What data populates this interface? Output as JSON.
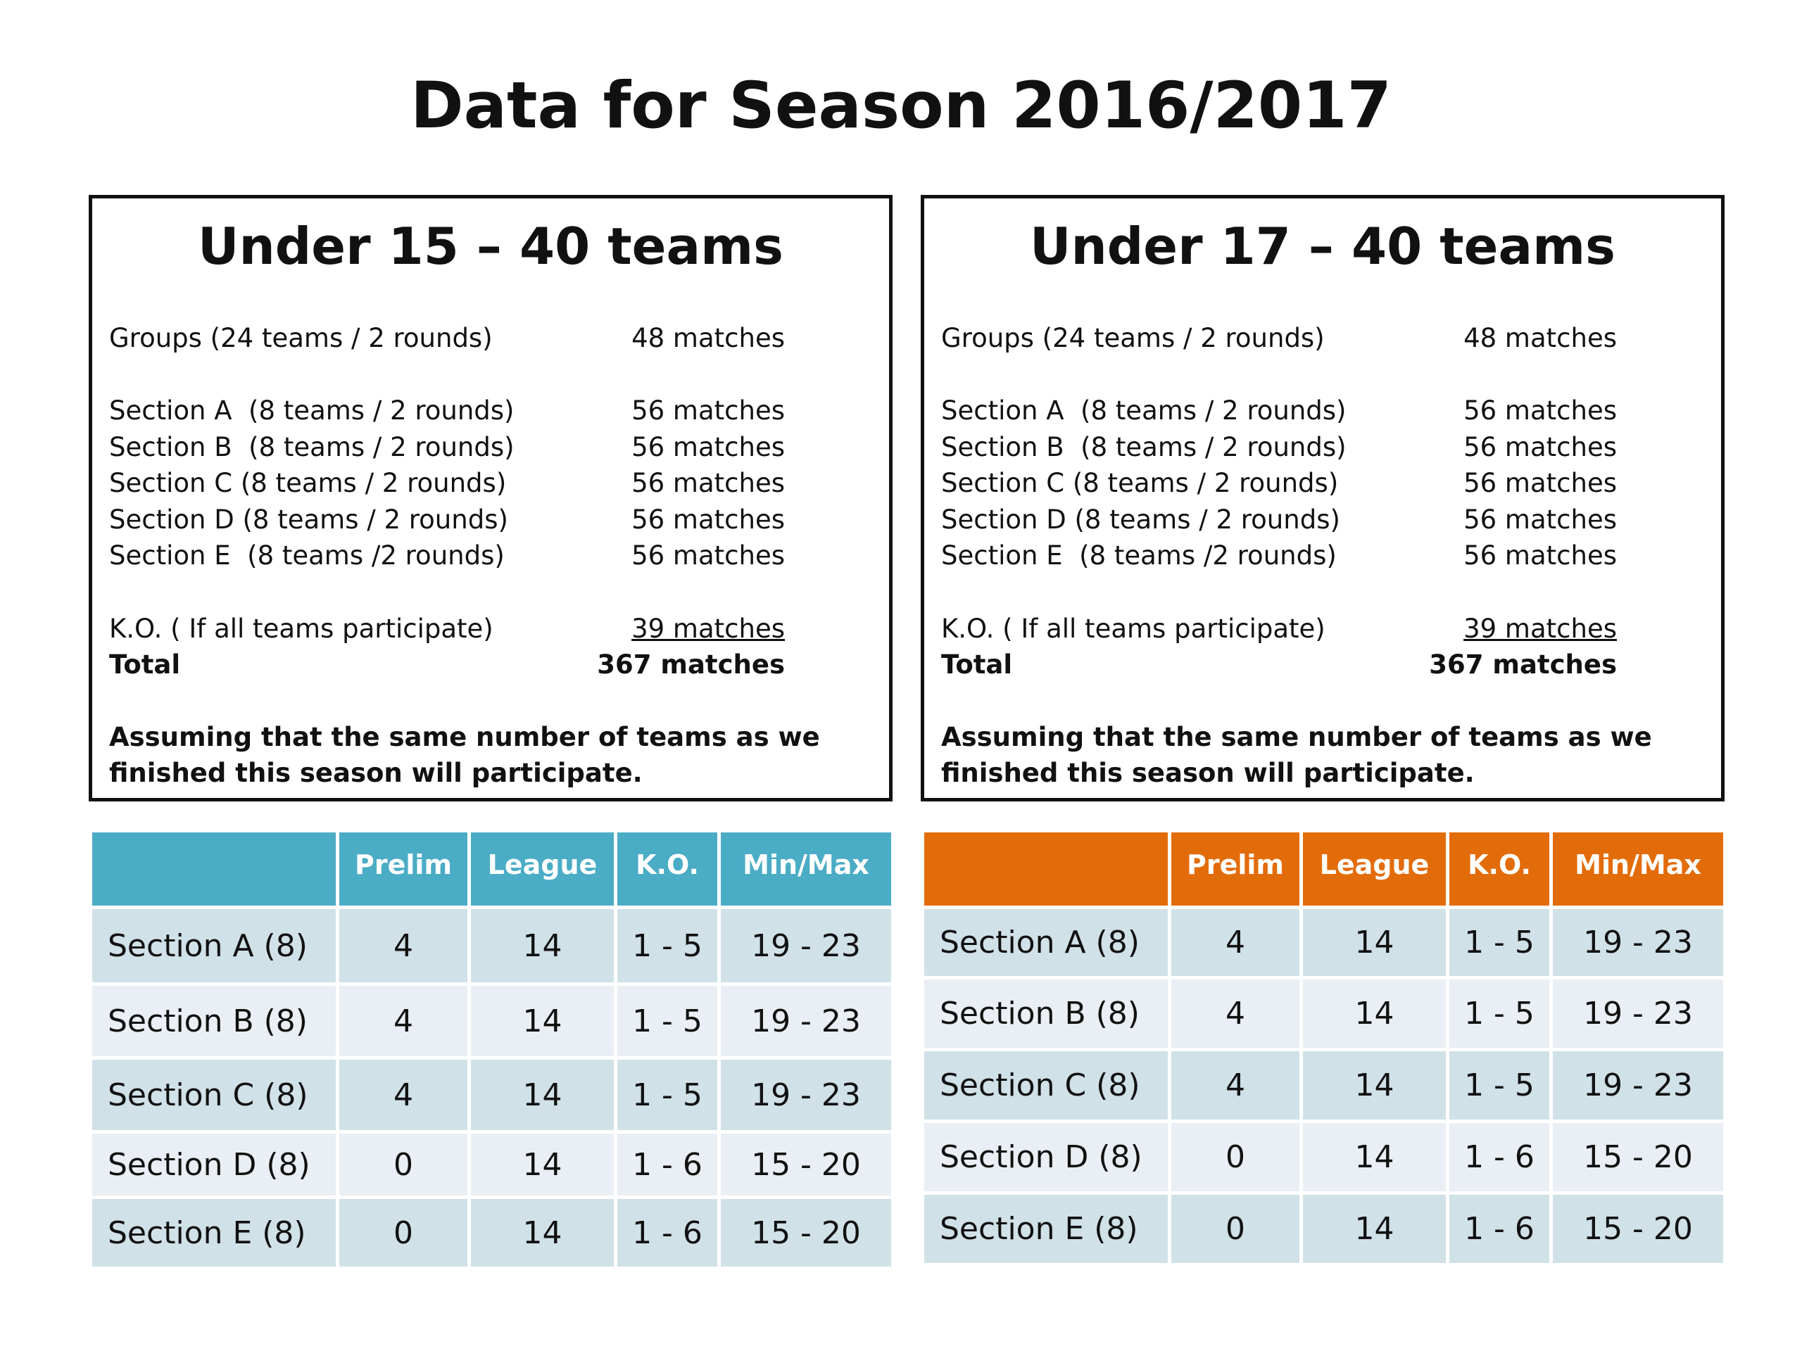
{
  "title": "Data for Season 2016/2017",
  "boxes": [
    {
      "heading": "Under 15 – 40 teams",
      "rows": [
        {
          "label": "Groups (24 teams / 2 rounds)",
          "value": "48 matches"
        },
        {
          "label": "Section A  (8 teams / 2 rounds)",
          "value": "56 matches"
        },
        {
          "label": "Section B  (8 teams / 2 rounds)",
          "value": "56 matches"
        },
        {
          "label": "Section C (8 teams / 2 rounds)",
          "value": "56 matches"
        },
        {
          "label": "Section D (8 teams / 2 rounds)",
          "value": "56 matches"
        },
        {
          "label": "Section E  (8 teams /2 rounds)",
          "value": "56 matches"
        },
        {
          "label": "K.O. ( If all teams participate)",
          "value": "39 matches"
        },
        {
          "label": "Total",
          "value": "367 matches"
        }
      ],
      "note": "Assuming that the same number of teams as we finished this season will participate."
    },
    {
      "heading": "Under 17 – 40 teams",
      "rows": [
        {
          "label": "Groups (24 teams / 2 rounds)",
          "value": "48 matches"
        },
        {
          "label": "Section A  (8 teams / 2 rounds)",
          "value": "56 matches"
        },
        {
          "label": "Section B  (8 teams / 2 rounds)",
          "value": "56 matches"
        },
        {
          "label": "Section C (8 teams / 2 rounds)",
          "value": "56 matches"
        },
        {
          "label": "Section D (8 teams / 2 rounds)",
          "value": "56 matches"
        },
        {
          "label": "Section E  (8 teams /2 rounds)",
          "value": "56 matches"
        },
        {
          "label": "K.O. ( If all teams participate)",
          "value": "39 matches"
        },
        {
          "label": "Total",
          "value": "367 matches"
        }
      ],
      "note": "Assuming that the same number of teams as we finished this season will participate."
    }
  ],
  "tables": [
    {
      "header_color": "#4bacc6",
      "columns": [
        "",
        "Prelim",
        "League",
        "K.O.",
        "Min/Max"
      ],
      "rows": [
        [
          "Section A (8)",
          "4",
          "14",
          "1 - 5",
          "19 - 23"
        ],
        [
          "Section B (8)",
          "4",
          "14",
          "1 - 5",
          "19 - 23"
        ],
        [
          "Section C (8)",
          "4",
          "14",
          "1 - 5",
          "19 - 23"
        ],
        [
          "Section D (8)",
          "0",
          "14",
          "1 - 6",
          "15 - 20"
        ],
        [
          "Section E (8)",
          "0",
          "14",
          "1 - 6",
          "15 - 20"
        ]
      ]
    },
    {
      "header_color": "#e36c0a",
      "columns": [
        "",
        "Prelim",
        "League",
        "K.O.",
        "Min/Max"
      ],
      "rows": [
        [
          "Section A (8)",
          "4",
          "14",
          "1 - 5",
          "19 - 23"
        ],
        [
          "Section B (8)",
          "4",
          "14",
          "1 - 5",
          "19 - 23"
        ],
        [
          "Section C (8)",
          "4",
          "14",
          "1 - 5",
          "19 - 23"
        ],
        [
          "Section D (8)",
          "0",
          "14",
          "1 - 6",
          "15 - 20"
        ],
        [
          "Section E (8)",
          "0",
          "14",
          "1 - 6",
          "15 - 20"
        ]
      ]
    }
  ]
}
